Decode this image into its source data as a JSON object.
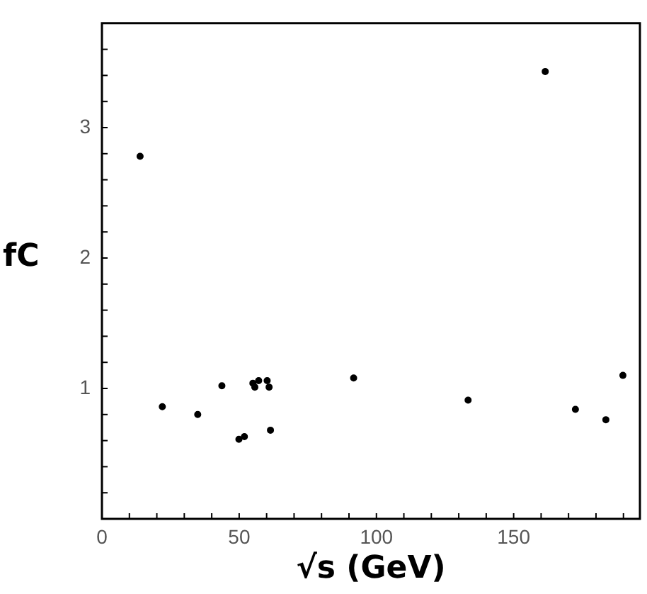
{
  "chart_data": {
    "type": "scatter",
    "xlabel": "√s (GeV)",
    "ylabel": "fC",
    "marker": "circle",
    "grid": false,
    "legend": false,
    "xlim": [
      0,
      196
    ],
    "ylim": [
      0,
      3.8
    ],
    "xticks": [
      0,
      {
        "value": 10,
        "label": null
      },
      {
        "value": 20,
        "label": null
      },
      {
        "value": 30,
        "label": null
      },
      {
        "value": 40,
        "label": null
      },
      50,
      {
        "value": 60,
        "label": null
      },
      {
        "value": 70,
        "label": null
      },
      {
        "value": 80,
        "label": null
      },
      {
        "value": 90,
        "label": null
      },
      100,
      {
        "value": 110,
        "label": null
      },
      {
        "value": 120,
        "label": null
      },
      {
        "value": 130,
        "label": null
      },
      {
        "value": 140,
        "label": null
      },
      150,
      {
        "value": 160,
        "label": null
      },
      {
        "value": 170,
        "label": null
      },
      {
        "value": 180,
        "label": null
      },
      {
        "value": 190,
        "label": null
      }
    ],
    "yticks": [
      {
        "value": 0.2,
        "label": null
      },
      {
        "value": 0.4,
        "label": null
      },
      {
        "value": 0.6,
        "label": null
      },
      {
        "value": 0.8,
        "label": null
      },
      1,
      {
        "value": 1.2,
        "label": null
      },
      {
        "value": 1.4,
        "label": null
      },
      {
        "value": 1.6,
        "label": null
      },
      {
        "value": 1.8,
        "label": null
      },
      2,
      {
        "value": 2.2,
        "label": null
      },
      {
        "value": 2.4,
        "label": null
      },
      {
        "value": 2.6,
        "label": null
      },
      {
        "value": 2.8,
        "label": null
      },
      3,
      {
        "value": 3.2,
        "label": null
      },
      {
        "value": 3.4,
        "label": null
      },
      {
        "value": 3.6,
        "label": null
      }
    ],
    "series": [
      {
        "color": "#000000",
        "x": [
          13.9,
          22,
          34.9,
          43.7,
          49.9,
          51.9,
          55,
          55.7,
          57.1,
          60.2,
          60.9,
          61.4,
          91.7,
          133.4,
          161.5,
          172.5,
          183.6,
          189.8
        ],
        "values": [
          2.78,
          0.86,
          0.8,
          1.02,
          0.61,
          0.63,
          1.04,
          1.01,
          1.06,
          1.06,
          1.01,
          0.68,
          1.08,
          0.91,
          3.43,
          0.84,
          0.76,
          1.1
        ]
      }
    ]
  }
}
